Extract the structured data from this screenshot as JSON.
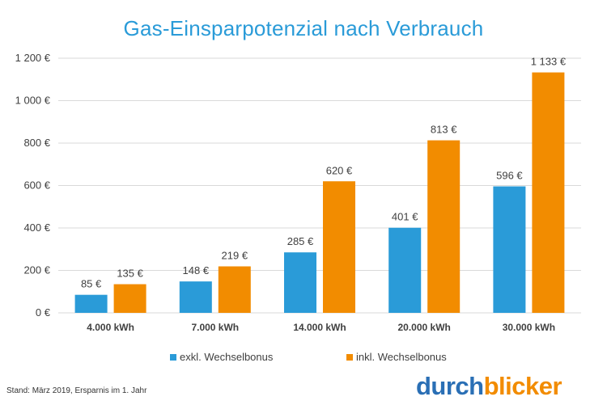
{
  "chart_data": {
    "type": "bar",
    "title": "Gas-Einsparpotenzial nach Verbrauch",
    "categories": [
      "4.000 kWh",
      "7.000 kWh",
      "14.000 kWh",
      "20.000 kWh",
      "30.000 kWh"
    ],
    "series": [
      {
        "name": "exkl. Wechselbonus",
        "values": [
          85,
          148,
          285,
          401,
          596
        ],
        "labels": [
          "85 €",
          "148 €",
          "285 €",
          "401 €",
          "596 €"
        ],
        "color": "#2a9bd8"
      },
      {
        "name": "inkl. Wechselbonus",
        "values": [
          135,
          219,
          620,
          813,
          1133
        ],
        "labels": [
          "135 €",
          "219 €",
          "620 €",
          "813 €",
          "1 133 €"
        ],
        "color": "#f28c00"
      }
    ],
    "yticks": [
      0,
      200,
      400,
      600,
      800,
      1000,
      1200
    ],
    "ytick_labels": [
      "0 €",
      "200 €",
      "400 €",
      "600 €",
      "800 €",
      "1 000 €",
      "1 200 €"
    ],
    "ylim": [
      0,
      1200
    ],
    "grid": true,
    "legend": "bottom",
    "xlabel": "",
    "ylabel": ""
  },
  "footnote": "Stand: März 2019, Ersparnis im 1. Jahr",
  "logo": {
    "part1": "durch",
    "part2": "blicker"
  }
}
